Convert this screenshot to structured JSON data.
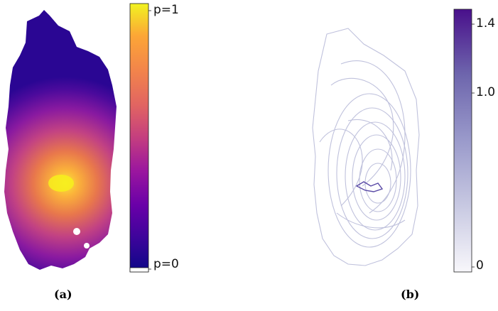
{
  "panel_a": {
    "caption": "(a)",
    "colorbar": {
      "top_label": "p=1",
      "bottom_label": "p=0",
      "colors": [
        "#0d0887",
        "#3a049a",
        "#6a00a8",
        "#9c179e",
        "#c43e7f",
        "#e16462",
        "#f2844b",
        "#fca636",
        "#f1f321"
      ]
    }
  },
  "panel_b": {
    "caption": "(b)",
    "colorbar": {
      "tick_labels": [
        "1.4",
        "1.0",
        "0"
      ],
      "max": 1.4,
      "min": 0,
      "colors": [
        "#f8f7fb",
        "#c8c9e2",
        "#9a9acb",
        "#6e66ad",
        "#49108b"
      ]
    }
  }
}
